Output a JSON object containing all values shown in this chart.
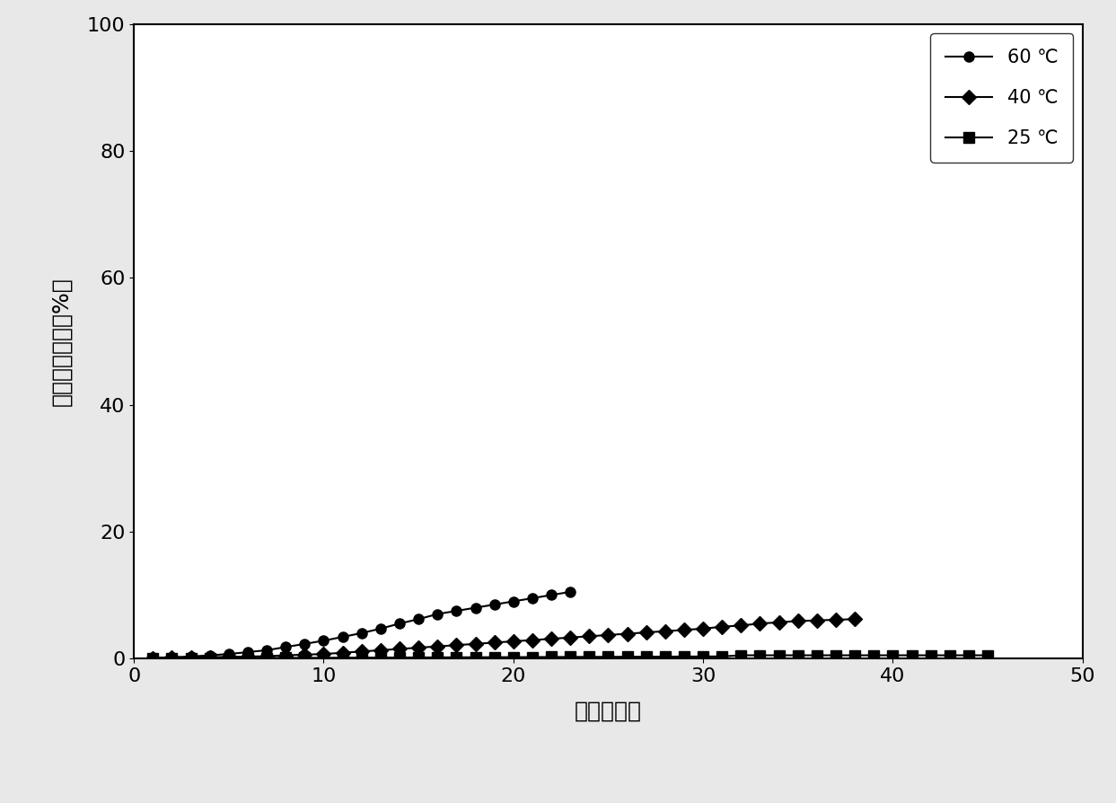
{
  "title": "",
  "xlabel": "时间（天）",
  "ylabel": "碳锨的失重率（%）",
  "xlim": [
    0,
    50
  ],
  "ylim": [
    0,
    100
  ],
  "xticks": [
    0,
    10,
    20,
    30,
    40,
    50
  ],
  "yticks": [
    0,
    20,
    40,
    60,
    80,
    100
  ],
  "series_60": {
    "label": "60 ℃",
    "x": [
      1,
      2,
      3,
      4,
      5,
      6,
      7,
      8,
      9,
      10,
      11,
      12,
      13,
      14,
      15,
      16,
      17,
      18,
      19,
      20,
      21,
      22,
      23
    ],
    "y": [
      0.1,
      0.2,
      0.3,
      0.5,
      0.7,
      1.0,
      1.3,
      1.8,
      2.3,
      2.8,
      3.4,
      4.0,
      4.7,
      5.5,
      6.2,
      7.0,
      7.5,
      8.0,
      8.5,
      9.0,
      9.5,
      10.0,
      10.5
    ],
    "color": "#000000",
    "marker": "o",
    "markersize": 8
  },
  "series_40": {
    "label": "40 ℃",
    "x": [
      1,
      2,
      3,
      4,
      5,
      6,
      7,
      8,
      9,
      10,
      11,
      12,
      13,
      14,
      15,
      16,
      17,
      18,
      19,
      20,
      21,
      22,
      23,
      24,
      25,
      26,
      27,
      28,
      29,
      30,
      31,
      32,
      33,
      34,
      35,
      36,
      37,
      38
    ],
    "y": [
      0.05,
      0.1,
      0.15,
      0.2,
      0.25,
      0.3,
      0.35,
      0.5,
      0.6,
      0.7,
      0.9,
      1.1,
      1.3,
      1.5,
      1.7,
      1.9,
      2.1,
      2.3,
      2.5,
      2.7,
      2.9,
      3.1,
      3.3,
      3.5,
      3.7,
      3.9,
      4.1,
      4.3,
      4.5,
      4.7,
      5.0,
      5.2,
      5.5,
      5.7,
      5.9,
      6.0,
      6.1,
      6.2
    ],
    "color": "#000000",
    "marker": "D",
    "markersize": 8
  },
  "series_25": {
    "label": "25 ℃",
    "x": [
      1,
      2,
      3,
      4,
      5,
      6,
      7,
      8,
      9,
      10,
      11,
      12,
      13,
      14,
      15,
      16,
      17,
      18,
      19,
      20,
      21,
      22,
      23,
      24,
      25,
      26,
      27,
      28,
      29,
      30,
      31,
      32,
      33,
      34,
      35,
      36,
      37,
      38,
      39,
      40,
      41,
      42,
      43,
      44,
      45
    ],
    "y": [
      0.02,
      0.03,
      0.04,
      0.05,
      0.06,
      0.07,
      0.08,
      0.09,
      0.1,
      0.11,
      0.12,
      0.13,
      0.14,
      0.15,
      0.16,
      0.17,
      0.18,
      0.19,
      0.2,
      0.21,
      0.22,
      0.23,
      0.24,
      0.25,
      0.26,
      0.27,
      0.28,
      0.29,
      0.3,
      0.31,
      0.32,
      0.5,
      0.5,
      0.5,
      0.5,
      0.5,
      0.5,
      0.5,
      0.5,
      0.5,
      0.5,
      0.5,
      0.5,
      0.5,
      0.5
    ],
    "color": "#000000",
    "marker": "s",
    "markersize": 8
  },
  "background_color": "#ffffff",
  "legend_loc": "upper right",
  "legend_fontsize": 15,
  "axis_fontsize": 18,
  "tick_fontsize": 16
}
